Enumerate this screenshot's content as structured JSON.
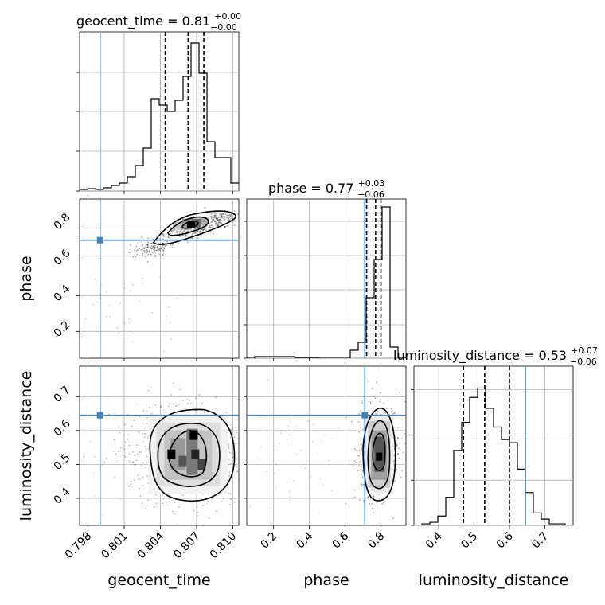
{
  "chart_data": {
    "type": "corner",
    "parameters": [
      "geocent_time",
      "phase",
      "luminosity_distance"
    ],
    "truth_color": "#4682b4",
    "grid": true,
    "panels": {
      "geocent_time": {
        "title": {
          "text": "geocent_time = 0.81",
          "sup": "+0.00",
          "sub": "−0.00"
        },
        "xlim": [
          0.7973,
          0.8105
        ],
        "ticks": [
          0.798,
          0.801,
          0.804,
          0.807,
          0.81
        ],
        "tick_labels": [
          "0.798",
          "0.801",
          "0.804",
          "0.807",
          "0.810"
        ],
        "xlabel": "geocent_time",
        "hist": {
          "bin_edges": [
            0.7973,
            0.79796,
            0.79862,
            0.79928,
            0.79994,
            0.8006,
            0.80126,
            0.80192,
            0.80258,
            0.80324,
            0.8039,
            0.80456,
            0.80522,
            0.80588,
            0.80654,
            0.8072,
            0.80786,
            0.80852,
            0.80918,
            0.80984,
            0.8105
          ],
          "heights": [
            0.01,
            0.015,
            0.01,
            0.02,
            0.035,
            0.05,
            0.09,
            0.16,
            0.27,
            0.58,
            0.54,
            0.5,
            0.57,
            0.72,
            0.93,
            0.74,
            0.31,
            0.21,
            0.21,
            0.05
          ]
        },
        "quantiles": [
          0.8044,
          0.8063,
          0.8076
        ],
        "truth": 0.799
      },
      "phase": {
        "title": {
          "text": "phase = 0.77",
          "sup": "+0.03",
          "sub": "−0.06"
        },
        "xlim": [
          0.05,
          0.94
        ],
        "ticks": [
          0.2,
          0.4,
          0.6,
          0.8
        ],
        "tick_labels": [
          "0.2",
          "0.4",
          "0.6",
          "0.8"
        ],
        "xlabel": "phase",
        "ylabel": "phase",
        "ylim": [
          0.05,
          0.94
        ],
        "hist": {
          "bin_edges": [
            0.05,
            0.0945,
            0.139,
            0.1835,
            0.228,
            0.2725,
            0.317,
            0.3615,
            0.406,
            0.4505,
            0.495,
            0.5395,
            0.584,
            0.6285,
            0.673,
            0.7175,
            0.762,
            0.8065,
            0.851,
            0.8955,
            0.94
          ],
          "heights": [
            0.0,
            0.01,
            0.01,
            0.01,
            0.01,
            0.01,
            0.005,
            0.005,
            0.005,
            0.0,
            0.0,
            0.0,
            0.0,
            0.05,
            0.1,
            0.38,
            0.62,
            0.95,
            0.07,
            0.0
          ]
        },
        "quantiles": [
          0.72,
          0.77,
          0.8
        ],
        "truth": 0.71
      },
      "luminosity_distance": {
        "title": {
          "text": "luminosity_distance = 0.53",
          "sup": "+0.07",
          "sub": "−0.06"
        },
        "xlim": [
          0.33,
          0.78
        ],
        "ticks": [
          0.4,
          0.5,
          0.6,
          0.7
        ],
        "tick_labels": [
          "0.4",
          "0.5",
          "0.6",
          "0.7"
        ],
        "xlabel": "luminosity_distance",
        "ylabel": "luminosity_distance",
        "ylim": [
          0.32,
          0.79
        ],
        "yticks": [
          0.4,
          0.5,
          0.6,
          0.7
        ],
        "hist": {
          "bin_edges": [
            0.33,
            0.3525,
            0.375,
            0.3975,
            0.42,
            0.4425,
            0.465,
            0.4875,
            0.51,
            0.5325,
            0.555,
            0.5775,
            0.6,
            0.6225,
            0.645,
            0.6675,
            0.69,
            0.7125,
            0.735,
            0.7575,
            0.78
          ],
          "heights": [
            0.0,
            0.01,
            0.02,
            0.06,
            0.18,
            0.48,
            0.66,
            0.82,
            0.88,
            0.75,
            0.63,
            0.55,
            0.53,
            0.36,
            0.21,
            0.08,
            0.04,
            0.01,
            0.01,
            0.0
          ],
          "ymax": 1.02
        },
        "quantiles": [
          0.47,
          0.53,
          0.6
        ],
        "truth": 0.645
      }
    },
    "joint": {
      "phase_vs_geocent_time": {
        "core": {
          "x": 0.8066,
          "y": 0.795
        },
        "truth_marker": {
          "x": 0.799,
          "y": 0.71
        }
      },
      "luminosity_distance_vs_geocent_time": {
        "core": {
          "x": 0.8063,
          "y": 0.53
        },
        "truth_marker": {
          "x": 0.799,
          "y": 0.645
        }
      },
      "luminosity_distance_vs_phase": {
        "core": {
          "x": 0.79,
          "y": 0.53
        },
        "truth_marker": {
          "x": 0.71,
          "y": 0.645
        }
      }
    }
  }
}
